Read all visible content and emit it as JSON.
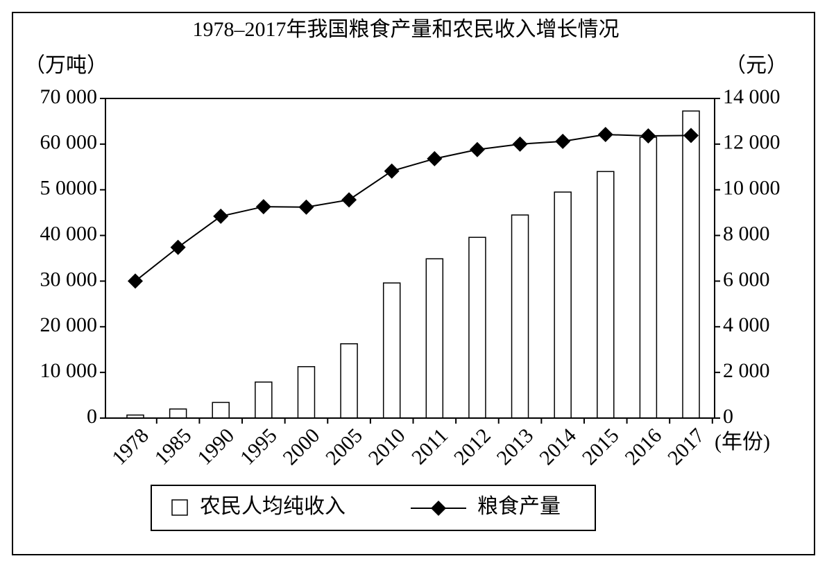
{
  "chart_data": {
    "type": "bar-line",
    "title": "1978–2017年我国粮食产量和农民收入增长情况",
    "y_label": "（万吨）",
    "y2_label": "（元）",
    "x_label": "(年份)",
    "categories": [
      "1978",
      "1985",
      "1990",
      "1995",
      "2000",
      "2005",
      "2010",
      "2011",
      "2012",
      "2013",
      "2014",
      "2015",
      "2016",
      "2017"
    ],
    "series": [
      {
        "name": "农民人均纯收入",
        "type": "bar",
        "axis": "y2",
        "color": "#ffffff",
        "values": [
          134,
          398,
          686,
          1578,
          2253,
          3255,
          5919,
          6977,
          7917,
          8896,
          9900,
          10800,
          12300,
          13450
        ]
      },
      {
        "name": "粮食产量",
        "type": "line",
        "axis": "y",
        "color": "#000000",
        "values": [
          30000,
          37400,
          44200,
          46300,
          46200,
          47800,
          54100,
          56800,
          58800,
          60000,
          60600,
          62100,
          61800,
          61900
        ]
      }
    ],
    "ylim": [
      0,
      70000
    ],
    "yticks": [
      0,
      {
        "value": 10000,
        "label": "10 000"
      },
      {
        "value": 20000,
        "label": "20 000"
      },
      {
        "value": 30000,
        "label": "30 000"
      },
      {
        "value": 40000,
        "label": "40 000"
      },
      {
        "value": 50000,
        "label": "5 0000"
      },
      {
        "value": 60000,
        "label": "60 000"
      },
      {
        "value": 70000,
        "label": "70 000"
      }
    ],
    "y2lim": [
      0,
      14000
    ],
    "y2ticks": [
      0,
      {
        "value": 2000,
        "label": "2 000"
      },
      {
        "value": 4000,
        "label": "4 000"
      },
      {
        "value": 6000,
        "label": "6 000"
      },
      {
        "value": 8000,
        "label": "8 000"
      },
      {
        "value": 10000,
        "label": "10 000"
      },
      {
        "value": 12000,
        "label": "12 000"
      },
      {
        "value": 14000,
        "label": "14 000"
      }
    ],
    "grid": false
  }
}
